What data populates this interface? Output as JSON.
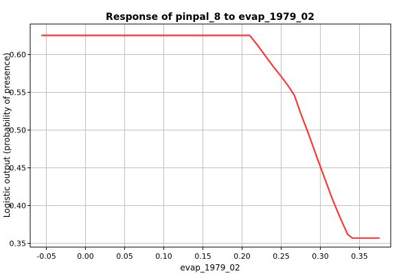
{
  "chart_data": {
    "type": "line",
    "title": "Response of pinpal_8 to evap_1979_02",
    "xlabel": "evap_1979_02",
    "ylabel": "Logistic output (probability of presence)",
    "xlim": [
      -0.07,
      0.39
    ],
    "ylim": [
      0.345,
      0.64
    ],
    "grid": true,
    "x_ticks": [
      -0.05,
      0.0,
      0.05,
      0.1,
      0.15,
      0.2,
      0.25,
      0.3,
      0.35
    ],
    "x_tick_labels": [
      "-0.05",
      "0.00",
      "0.05",
      "0.10",
      "0.15",
      "0.20",
      "0.25",
      "0.30",
      "0.35"
    ],
    "y_ticks": [
      0.35,
      0.4,
      0.45,
      0.5,
      0.55,
      0.6
    ],
    "y_tick_labels": [
      "0.35",
      "0.40",
      "0.45",
      "0.50",
      "0.55",
      "0.60"
    ],
    "series": [
      {
        "color": "#ff3333",
        "x": [
          -0.055,
          0.21,
          0.22,
          0.23,
          0.24,
          0.25,
          0.26,
          0.267,
          0.275,
          0.285,
          0.295,
          0.305,
          0.315,
          0.325,
          0.335,
          0.341,
          0.36,
          0.375
        ],
        "y": [
          0.625,
          0.625,
          0.612,
          0.598,
          0.584,
          0.571,
          0.557,
          0.546,
          0.522,
          0.495,
          0.466,
          0.438,
          0.41,
          0.385,
          0.362,
          0.357,
          0.357,
          0.357
        ]
      }
    ]
  }
}
